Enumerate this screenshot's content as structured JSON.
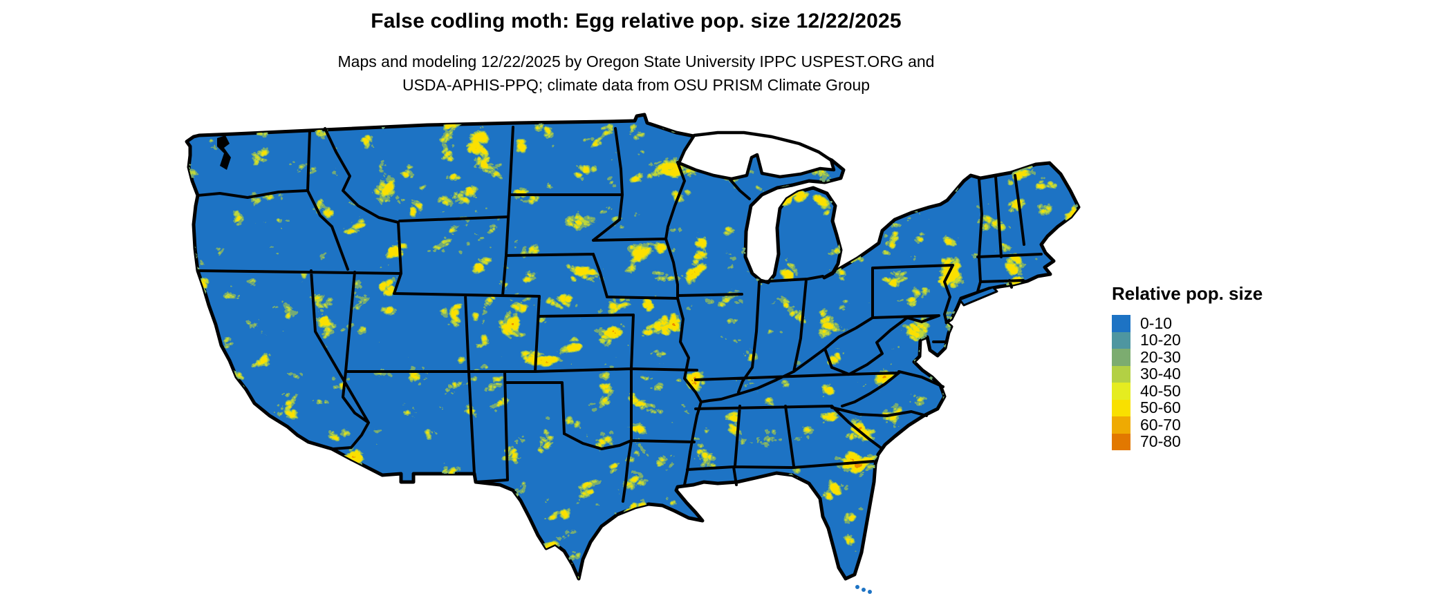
{
  "header": {
    "title": "False codling moth: Egg relative pop. size 12/22/2025",
    "subtitle_line1": "Maps and modeling 12/22/2025 by Oregon State University IPPC USPEST.ORG and",
    "subtitle_line2": "USDA-APHIS-PPQ; climate data from OSU PRISM Climate Group"
  },
  "legend": {
    "title": "Relative pop. size",
    "items": [
      {
        "label": "0-10",
        "color": "#1d73c4"
      },
      {
        "label": "10-20",
        "color": "#4e96a0"
      },
      {
        "label": "20-30",
        "color": "#7cac70"
      },
      {
        "label": "30-40",
        "color": "#b3d044"
      },
      {
        "label": "40-50",
        "color": "#e5ec20"
      },
      {
        "label": "50-60",
        "color": "#f9e000"
      },
      {
        "label": "60-70",
        "color": "#efaa02"
      },
      {
        "label": "70-80",
        "color": "#e27800"
      }
    ]
  },
  "map": {
    "base_color": "#1d73c4",
    "water_color": "#ffffff",
    "border_color": "#000000",
    "speckle_green": "#74aa74",
    "speckle_yellow_green": "#bdd63d",
    "speckle_yellow": "#fbe000",
    "speckle_orange": "#ec8a00"
  }
}
